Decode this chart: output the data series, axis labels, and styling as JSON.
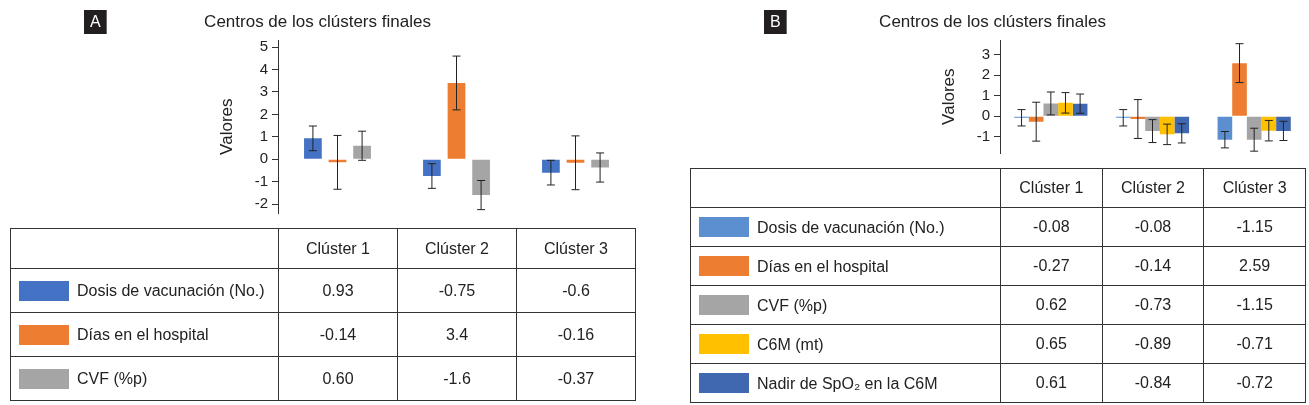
{
  "chart_data": [
    {
      "type": "bar",
      "title": "Centros de los clústers finales",
      "ylabel": "Valores",
      "annotations": [
        "A"
      ],
      "categories": [
        "Clúster 1",
        "Clúster 2",
        "Clúster 3"
      ],
      "series": [
        {
          "name": "Dosis de vacunación (No.)",
          "color": "#4472c4",
          "values": [
            0.93,
            -0.75,
            -0.6
          ],
          "errors": [
            0.55,
            0.55,
            0.55
          ],
          "value_labels": [
            "0.93",
            "-0.75",
            "-0.6"
          ]
        },
        {
          "name": "Días en el hospital",
          "color": "#ed7d31",
          "values": [
            -0.14,
            3.4,
            -0.16
          ],
          "errors": [
            1.2,
            1.2,
            1.2
          ],
          "value_labels": [
            "-0.14",
            "3.4",
            "-0.16"
          ]
        },
        {
          "name": "CVF (%p)",
          "color": "#a5a5a5",
          "values": [
            0.6,
            -1.6,
            -0.37
          ],
          "errors": [
            0.65,
            0.65,
            0.65
          ],
          "value_labels": [
            "0.60",
            "-1.6",
            "-0.37"
          ]
        }
      ],
      "ylim": [
        -2.4,
        5.3
      ],
      "yticks": [
        -2,
        -1,
        0,
        1,
        2,
        3,
        4,
        5
      ],
      "grid": false,
      "legend": "bottom",
      "tick_labels": "y"
    },
    {
      "type": "bar",
      "title": "Centros de los clústers finales",
      "ylabel": "Valores",
      "annotations": [
        "B"
      ],
      "categories": [
        "Clúster 1",
        "Clúster 2",
        "Clúster 3"
      ],
      "series": [
        {
          "name": "Dosis de vacunación (No.)",
          "color": "#5b8fd0",
          "values": [
            -0.08,
            -0.08,
            -1.15
          ],
          "errors": [
            0.4,
            0.4,
            0.4
          ],
          "value_labels": [
            "-0.08",
            "-0.08",
            "-1.15"
          ]
        },
        {
          "name": "Días en el hospital",
          "color": "#ed7d31",
          "values": [
            -0.27,
            -0.14,
            2.59
          ],
          "errors": [
            0.95,
            0.95,
            0.95
          ],
          "value_labels": [
            "-0.27",
            "-0.14",
            "2.59"
          ]
        },
        {
          "name": "CVF (%p)",
          "color": "#a5a5a5",
          "values": [
            0.62,
            -0.73,
            -1.15
          ],
          "errors": [
            0.56,
            0.56,
            0.56
          ],
          "value_labels": [
            "0.62",
            "-0.73",
            "-1.15"
          ]
        },
        {
          "name": "C6M (mt)",
          "color": "#ffc000",
          "values": [
            0.65,
            -0.89,
            -0.71
          ],
          "errors": [
            0.5,
            0.5,
            0.5
          ],
          "value_labels": [
            "0.65",
            "-0.89",
            "-0.71"
          ]
        },
        {
          "name": "Nadir de SpO₂ en la C6M",
          "color": "#4068b0",
          "values": [
            0.61,
            -0.84,
            -0.72
          ],
          "errors": [
            0.47,
            0.47,
            0.47
          ],
          "value_labels": [
            "0.61",
            "-0.84",
            "-0.72"
          ]
        }
      ],
      "ylim": [
        -1.8,
        3.7
      ],
      "yticks": [
        -1,
        0,
        1,
        2,
        3
      ],
      "grid": false,
      "legend": "bottom",
      "tick_labels": "y"
    }
  ]
}
